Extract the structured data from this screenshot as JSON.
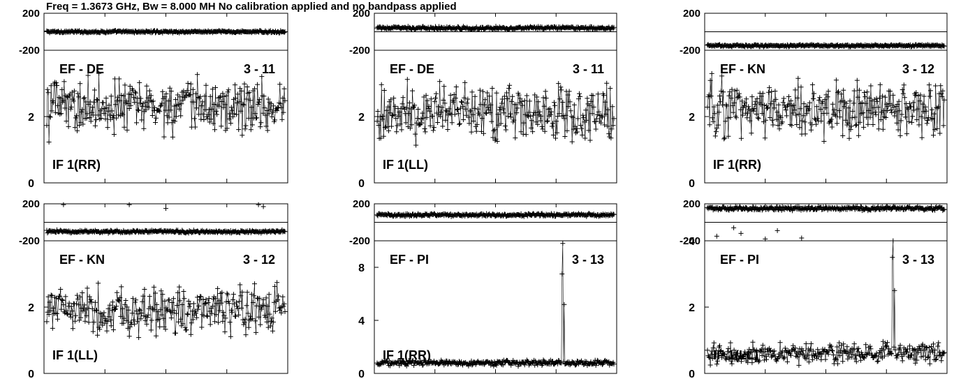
{
  "header": {
    "title": "Freq = 1.3673 GHz, Bw = 8.000 MH   No calibration applied and no bandpass applied"
  },
  "colors": {
    "ink": "#000000",
    "background": "#ffffff"
  },
  "chart_data": [
    {
      "type": "scatter",
      "baseline": "EF - DE",
      "baseline_id": "3 - 11",
      "if_label": "IF 1(RR)",
      "phase_panel": {
        "ylim": [
          -200,
          200
        ],
        "ticks": [
          "200",
          "-200"
        ],
        "level": 0,
        "spread": 15,
        "outliers": []
      },
      "amp_panel": {
        "ylim": [
          0,
          4
        ],
        "ticks": [
          {
            "v": 2,
            "t": "2"
          },
          {
            "v": 0,
            "t": "0"
          }
        ],
        "mean": 2.3,
        "spread": 0.8,
        "spikes": []
      }
    },
    {
      "type": "scatter",
      "baseline": "EF - DE",
      "baseline_id": "3 - 11",
      "if_label": "IF 1(LL)",
      "phase_panel": {
        "ylim": [
          -200,
          200
        ],
        "ticks": [
          "200",
          "-200"
        ],
        "level": 40,
        "spread": 20,
        "outliers": []
      },
      "amp_panel": {
        "ylim": [
          0,
          4
        ],
        "ticks": [
          {
            "v": 2,
            "t": "2"
          },
          {
            "v": 0,
            "t": "0"
          }
        ],
        "mean": 2.1,
        "spread": 0.8,
        "spikes": []
      }
    },
    {
      "type": "scatter",
      "baseline": "EF - KN",
      "baseline_id": "3 - 12",
      "if_label": "IF 1(RR)",
      "phase_panel": {
        "ylim": [
          -200,
          200
        ],
        "ticks": [
          "200",
          "-200"
        ],
        "level": -150,
        "spread": 15,
        "outliers": []
      },
      "amp_panel": {
        "ylim": [
          0,
          4
        ],
        "ticks": [
          {
            "v": 2,
            "t": "2"
          },
          {
            "v": 0,
            "t": "0"
          }
        ],
        "mean": 2.2,
        "spread": 0.8,
        "spikes": []
      }
    },
    {
      "type": "scatter",
      "baseline": "EF - KN",
      "baseline_id": "3 - 12",
      "if_label": "IF 1(LL)",
      "phase_panel": {
        "ylim": [
          -200,
          200
        ],
        "ticks": [
          "200",
          "-200"
        ],
        "level": -100,
        "spread": 20,
        "outliers": [
          [
            0.08,
            190
          ],
          [
            0.35,
            190
          ],
          [
            0.5,
            150
          ],
          [
            0.88,
            190
          ],
          [
            0.9,
            170
          ]
        ]
      },
      "amp_panel": {
        "ylim": [
          0,
          4
        ],
        "ticks": [
          {
            "v": 2,
            "t": "2"
          },
          {
            "v": 0,
            "t": "0"
          }
        ],
        "mean": 1.9,
        "spread": 0.7,
        "spikes": []
      }
    },
    {
      "type": "scatter",
      "baseline": "EF - PI",
      "baseline_id": "3 - 13",
      "if_label": "IF 1(RR)",
      "phase_panel": {
        "ylim": [
          -200,
          200
        ],
        "ticks": [
          "200",
          "-200"
        ],
        "level": 80,
        "spread": 20,
        "outliers": []
      },
      "amp_panel": {
        "ylim": [
          0,
          10
        ],
        "ticks": [
          {
            "v": 8,
            "t": "8"
          },
          {
            "v": 4,
            "t": "4"
          },
          {
            "v": 0,
            "t": "0"
          }
        ],
        "mean": 0.8,
        "spread": 0.2,
        "spikes": [
          [
            0.78,
            7.5
          ],
          [
            0.785,
            9.8
          ],
          [
            0.79,
            5.2
          ]
        ]
      }
    },
    {
      "type": "scatter",
      "baseline": "EF - PI",
      "baseline_id": "3 - 13",
      "if_label": "IF 1(LL)",
      "phase_panel": {
        "ylim": [
          -200,
          200
        ],
        "ticks": [
          "200",
          "-200"
        ],
        "level": 150,
        "spread": 25,
        "outliers": [
          [
            0.05,
            -150
          ],
          [
            0.15,
            -120
          ],
          [
            0.25,
            -180
          ],
          [
            0.3,
            -90
          ],
          [
            0.12,
            -60
          ],
          [
            0.4,
            -170
          ]
        ]
      },
      "amp_panel": {
        "ylim": [
          0,
          4
        ],
        "ticks": [
          {
            "v": 4,
            "t": "4"
          },
          {
            "v": 2,
            "t": "2"
          },
          {
            "v": 0,
            "t": "0"
          }
        ],
        "mean": 0.6,
        "spread": 0.3,
        "spikes": [
          [
            0.78,
            3.5
          ],
          [
            0.785,
            4.0
          ],
          [
            0.79,
            2.5
          ]
        ]
      }
    }
  ]
}
